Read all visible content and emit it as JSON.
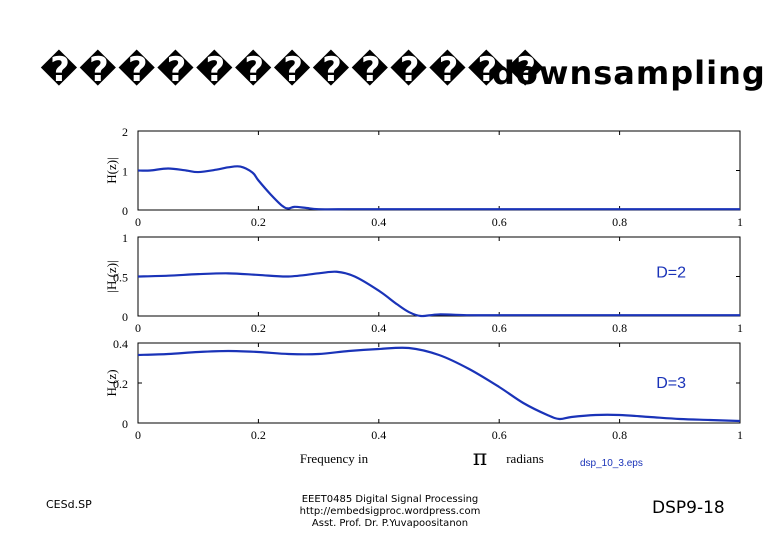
{
  "slide": {
    "title_garbled": "�������������",
    "title_english": "downsampling",
    "eps_label": "dsp_10_3.eps",
    "footer_left": "CESd.SP",
    "footer_center": [
      "EEET0485 Digital Signal Processing",
      "http://embedsigproc.wordpress.com",
      "Asst. Prof. Dr. P.Yuvapoositanon"
    ],
    "footer_right": "DSP9-18"
  },
  "chart_data": [
    {
      "type": "line",
      "ylabel": "H(z)|",
      "xlim": [
        0,
        1
      ],
      "ylim": [
        0,
        2
      ],
      "x_ticks": [
        "0",
        "0.2",
        "0.4",
        "0.6",
        "0.8",
        "1"
      ],
      "y_ticks": [
        "0",
        "1",
        "2"
      ],
      "annotation": "",
      "series": [
        {
          "color": "#1a33b8",
          "x": [
            0,
            0.02,
            0.05,
            0.08,
            0.1,
            0.13,
            0.15,
            0.17,
            0.19,
            0.2,
            0.22,
            0.24,
            0.25,
            0.26,
            0.28,
            0.3,
            0.35,
            0.4,
            0.5,
            0.6,
            0.7,
            0.8,
            0.9,
            1.0
          ],
          "y": [
            1.0,
            1.0,
            1.05,
            1.0,
            0.96,
            1.02,
            1.08,
            1.1,
            0.95,
            0.75,
            0.4,
            0.1,
            0.04,
            0.08,
            0.05,
            0.02,
            0.02,
            0.02,
            0.02,
            0.02,
            0.02,
            0.02,
            0.02,
            0.02
          ]
        }
      ]
    },
    {
      "type": "line",
      "ylabel": "|H (z)|",
      "xlim": [
        0,
        1
      ],
      "ylim": [
        0,
        1
      ],
      "x_ticks": [
        "0",
        "0.2",
        "0.4",
        "0.6",
        "0.8",
        "1"
      ],
      "y_ticks": [
        "0",
        "0.5",
        "1"
      ],
      "annotation": "D=2",
      "series": [
        {
          "color": "#1a33b8",
          "x": [
            0,
            0.05,
            0.1,
            0.15,
            0.2,
            0.25,
            0.3,
            0.33,
            0.36,
            0.4,
            0.43,
            0.45,
            0.47,
            0.5,
            0.55,
            0.6,
            0.7,
            0.8,
            0.9,
            1.0
          ],
          "y": [
            0.5,
            0.51,
            0.53,
            0.54,
            0.52,
            0.5,
            0.54,
            0.56,
            0.5,
            0.32,
            0.15,
            0.05,
            0.0,
            0.02,
            0.01,
            0.01,
            0.01,
            0.01,
            0.01,
            0.01
          ]
        }
      ]
    },
    {
      "type": "line",
      "ylabel": "H (z)",
      "xlabel": "Frequency in",
      "xlabel_symbol": "π",
      "xlabel_unit": "radians",
      "xlim": [
        0,
        1
      ],
      "ylim": [
        0,
        0.4
      ],
      "x_ticks": [
        "0",
        "0.2",
        "0.4",
        "0.6",
        "0.8",
        "1"
      ],
      "y_ticks": [
        "0",
        "0.2",
        "0.4"
      ],
      "annotation": "D=3",
      "series": [
        {
          "color": "#1a33b8",
          "x": [
            0,
            0.05,
            0.1,
            0.15,
            0.2,
            0.25,
            0.3,
            0.35,
            0.4,
            0.45,
            0.5,
            0.55,
            0.6,
            0.64,
            0.68,
            0.7,
            0.72,
            0.76,
            0.8,
            0.85,
            0.9,
            0.95,
            1.0
          ],
          "y": [
            0.34,
            0.345,
            0.355,
            0.36,
            0.355,
            0.345,
            0.345,
            0.36,
            0.37,
            0.375,
            0.34,
            0.27,
            0.18,
            0.1,
            0.04,
            0.02,
            0.03,
            0.04,
            0.04,
            0.03,
            0.02,
            0.015,
            0.01
          ]
        }
      ]
    }
  ]
}
